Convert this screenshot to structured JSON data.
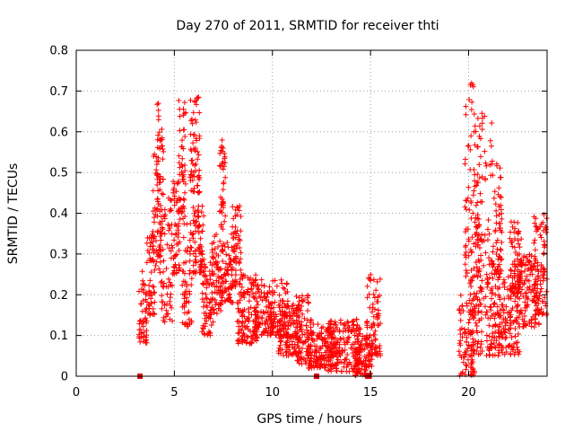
{
  "chart_data": {
    "type": "scatter",
    "title": "Day 270 of 2011, SRMTID for receiver thti",
    "xlabel": "GPS time / hours",
    "ylabel": "SRMTID / TECUs",
    "xlim": [
      0,
      24
    ],
    "ylim": [
      0,
      0.8
    ],
    "xticks": [
      0,
      5,
      10,
      15,
      20
    ],
    "yticks": [
      0,
      0.1,
      0.2,
      0.3,
      0.4,
      0.5,
      0.6,
      0.7,
      0.8
    ],
    "xtick_labels": [
      "0",
      "5",
      "10",
      "15",
      "20"
    ],
    "ytick_labels": [
      "0",
      "0.1",
      "0.2",
      "0.3",
      "0.4",
      "0.5",
      "0.6",
      "0.7",
      "0.8"
    ],
    "grid": true,
    "marker_color": "#ff0000",
    "zero_markers_x": [
      3.25,
      12.25,
      14.9
    ],
    "series": [
      {
        "name": "SRMTID",
        "marker": "+",
        "clusters": [
          {
            "x": [
              3.2,
              3.6
            ],
            "y": [
              0.08,
              0.26
            ]
          },
          {
            "x": [
              3.6,
              4.0
            ],
            "y": [
              0.15,
              0.35
            ]
          },
          {
            "x": [
              3.9,
              4.3
            ],
            "y": [
              0.25,
              0.55
            ]
          },
          {
            "x": [
              4.1,
              4.45
            ],
            "y": [
              0.4,
              0.7
            ]
          },
          {
            "x": [
              4.3,
              4.9
            ],
            "y": [
              0.13,
              0.45
            ]
          },
          {
            "x": [
              4.9,
              5.3
            ],
            "y": [
              0.25,
              0.48
            ]
          },
          {
            "x": [
              5.2,
              5.6
            ],
            "y": [
              0.4,
              0.69
            ]
          },
          {
            "x": [
              5.4,
              5.9
            ],
            "y": [
              0.12,
              0.4
            ]
          },
          {
            "x": [
              5.8,
              6.3
            ],
            "y": [
              0.45,
              0.69
            ]
          },
          {
            "x": [
              5.9,
              6.5
            ],
            "y": [
              0.25,
              0.42
            ]
          },
          {
            "x": [
              6.4,
              7.0
            ],
            "y": [
              0.1,
              0.28
            ]
          },
          {
            "x": [
              6.9,
              7.4
            ],
            "y": [
              0.15,
              0.35
            ]
          },
          {
            "x": [
              7.3,
              7.6
            ],
            "y": [
              0.35,
              0.58
            ]
          },
          {
            "x": [
              7.4,
              8.0
            ],
            "y": [
              0.18,
              0.33
            ]
          },
          {
            "x": [
              7.9,
              8.4
            ],
            "y": [
              0.22,
              0.42
            ]
          },
          {
            "x": [
              8.2,
              9.3
            ],
            "y": [
              0.08,
              0.25
            ]
          },
          {
            "x": [
              9.0,
              10.8
            ],
            "y": [
              0.1,
              0.24
            ]
          },
          {
            "x": [
              10.3,
              11.4
            ],
            "y": [
              0.05,
              0.18
            ]
          },
          {
            "x": [
              11.2,
              12.0
            ],
            "y": [
              0.03,
              0.2
            ]
          },
          {
            "x": [
              11.8,
              13.2
            ],
            "y": [
              0.02,
              0.13
            ]
          },
          {
            "x": [
              12.8,
              14.5
            ],
            "y": [
              0.01,
              0.14
            ]
          },
          {
            "x": [
              14.2,
              15.1
            ],
            "y": [
              0.0,
              0.1
            ]
          },
          {
            "x": [
              14.8,
              15.5
            ],
            "y": [
              0.05,
              0.25
            ]
          },
          {
            "x": [
              19.5,
              20.3
            ],
            "y": [
              0.0,
              0.2
            ]
          },
          {
            "x": [
              19.8,
              20.3
            ],
            "y": [
              0.2,
              0.74
            ]
          },
          {
            "x": [
              20.2,
              20.7
            ],
            "y": [
              0.05,
              0.4
            ]
          },
          {
            "x": [
              20.3,
              21.3
            ],
            "y": [
              0.15,
              0.65
            ]
          },
          {
            "x": [
              20.9,
              21.6
            ],
            "y": [
              0.05,
              0.28
            ]
          },
          {
            "x": [
              21.3,
              21.7
            ],
            "y": [
              0.25,
              0.53
            ]
          },
          {
            "x": [
              21.5,
              22.6
            ],
            "y": [
              0.05,
              0.25
            ]
          },
          {
            "x": [
              22.1,
              22.7
            ],
            "y": [
              0.2,
              0.38
            ]
          },
          {
            "x": [
              22.4,
              23.6
            ],
            "y": [
              0.12,
              0.3
            ]
          },
          {
            "x": [
              23.3,
              24.0
            ],
            "y": [
              0.15,
              0.4
            ]
          }
        ]
      }
    ]
  }
}
